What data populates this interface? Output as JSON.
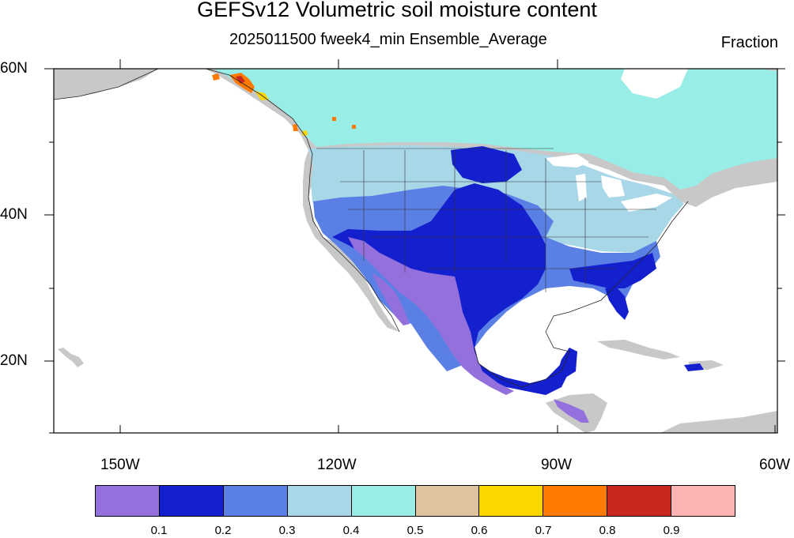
{
  "title": "GEFSv12 Volumetric soil moisture content",
  "subtitle": "2025011500 fweek4_min Ensemble_Average",
  "units": "Fraction",
  "lon_labels": [
    "150W",
    "120W",
    "90W",
    "60W"
  ],
  "lat_labels": [
    "60N",
    "40N",
    "20N"
  ],
  "colorbar": {
    "colors": [
      "#9370DB",
      "#1420CD",
      "#5A80E6",
      "#A8D8E8",
      "#98EEE6",
      "#DEC49C",
      "#FFD700",
      "#FF7A00",
      "#C82820",
      "#FFB4B4"
    ],
    "labels": [
      "0.1",
      "0.2",
      "0.3",
      "0.4",
      "0.5",
      "0.6",
      "0.7",
      "0.8",
      "0.9"
    ]
  },
  "map_colors": {
    "land_nodata": "#C8C8C8",
    "water": "#FFFFFF"
  }
}
